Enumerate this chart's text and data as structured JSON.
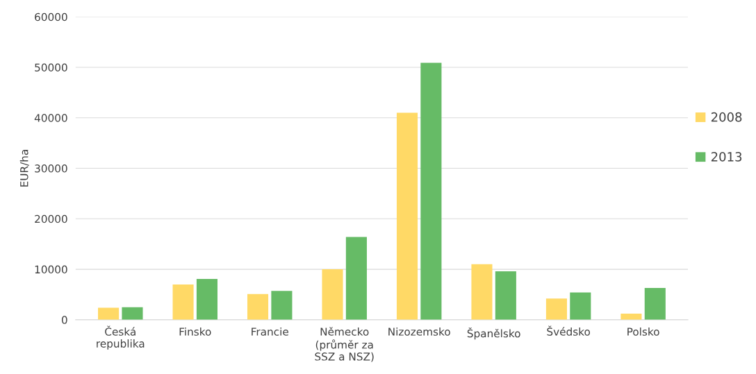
{
  "chart_data": {
    "type": "bar",
    "ylabel": "EUR/ha",
    "categories": [
      "Česká\nrepublika",
      "Finsko",
      "Francie",
      "Německo\n(průměr za\nSSZ a NSZ)",
      "Nizozemsko",
      "Španělsko",
      "Švédsko",
      "Polsko"
    ],
    "series": [
      {
        "name": "2008",
        "color": "#ffd966",
        "values": [
          2400,
          7000,
          5100,
          10000,
          41000,
          11000,
          4200,
          1200
        ]
      },
      {
        "name": "2013",
        "color": "#66bb66",
        "values": [
          2500,
          8100,
          5700,
          16400,
          50900,
          9600,
          5400,
          6300
        ]
      }
    ],
    "ylim": [
      0,
      60000
    ],
    "yticks": [
      0,
      10000,
      20000,
      30000,
      40000,
      50000,
      60000
    ],
    "grid": "y",
    "legend": "right"
  }
}
